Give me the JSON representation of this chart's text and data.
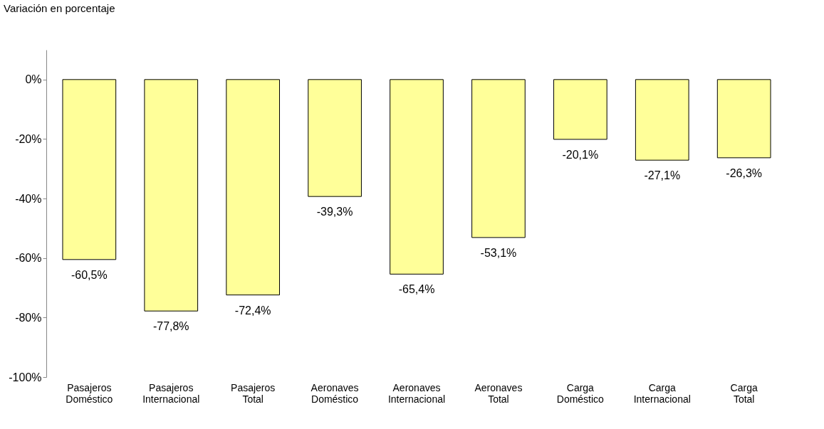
{
  "chart_data": {
    "type": "bar",
    "title": "Variación en porcentaje",
    "categories": [
      "Pasajeros Doméstico",
      "Pasajeros Internacional",
      "Pasajeros Total",
      "Aeronaves Doméstico",
      "Aeronaves Internacional",
      "Aeronaves Total",
      "Carga Doméstico",
      "Carga Internacional",
      "Carga Total"
    ],
    "values": [
      -60.5,
      -77.8,
      -72.4,
      -39.3,
      -65.4,
      -53.1,
      -20.1,
      -27.1,
      -26.3
    ],
    "value_labels": [
      "-60,5%",
      "-77,8%",
      "-72,4%",
      "-39,3%",
      "-65,4%",
      "-53,1%",
      "-20,1%",
      "-27,1%",
      "-26,3%"
    ],
    "color": "#ffff99",
    "ylim": [
      -100,
      10
    ],
    "yticks": [
      {
        "value": 0,
        "label": "0%"
      },
      {
        "value": -20,
        "label": "-20%"
      },
      {
        "value": -40,
        "label": "-40%"
      },
      {
        "value": -60,
        "label": "-60%"
      },
      {
        "value": -80,
        "label": "-80%"
      },
      {
        "value": -100,
        "label": "-100%"
      }
    ],
    "grid": false
  }
}
